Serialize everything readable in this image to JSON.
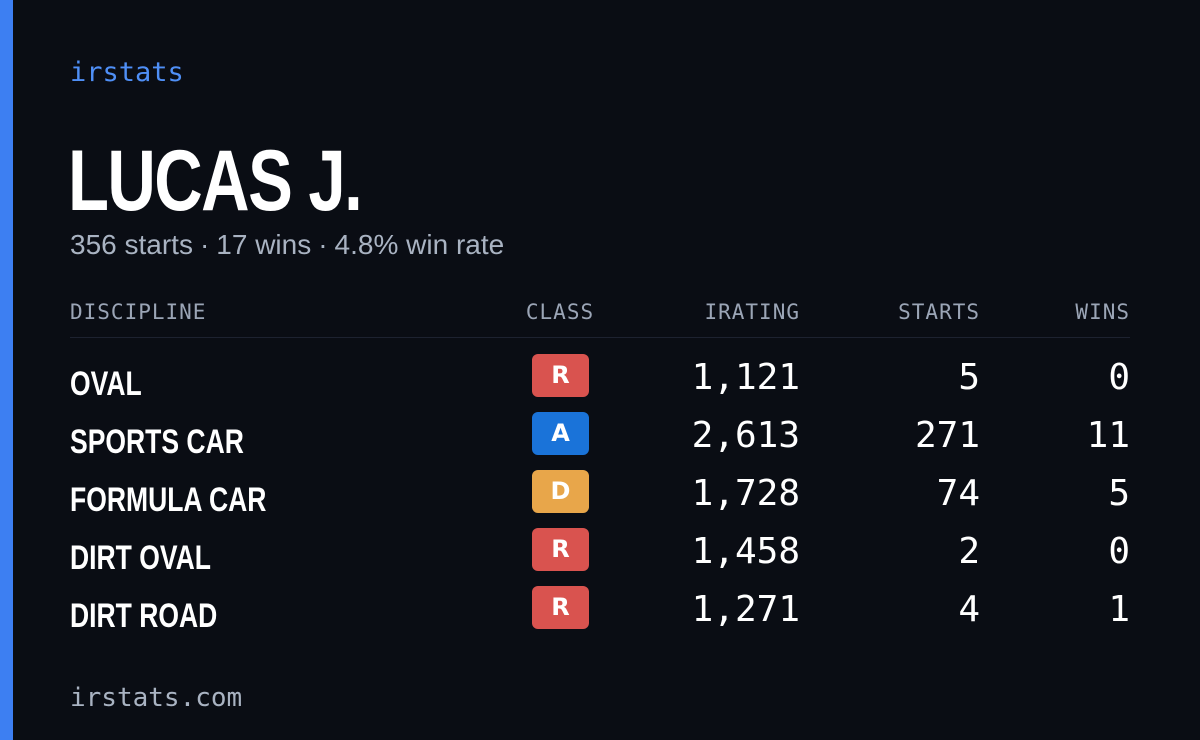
{
  "brand": "irstats",
  "player": {
    "name": "LUCAS J.",
    "starts_text": "356 starts",
    "wins_text": "17 wins",
    "win_rate_text": "4.8% win rate",
    "separator": "·"
  },
  "table": {
    "headers": {
      "discipline": "DISCIPLINE",
      "class": "CLASS",
      "irating": "IRATING",
      "starts": "STARTS",
      "wins": "WINS"
    },
    "rows": [
      {
        "discipline": "OVAL",
        "class": "R",
        "irating": "1,121",
        "starts": "5",
        "wins": "0"
      },
      {
        "discipline": "SPORTS CAR",
        "class": "A",
        "irating": "2,613",
        "starts": "271",
        "wins": "11"
      },
      {
        "discipline": "FORMULA CAR",
        "class": "D",
        "irating": "1,728",
        "starts": "74",
        "wins": "5"
      },
      {
        "discipline": "DIRT OVAL",
        "class": "R",
        "irating": "1,458",
        "starts": "2",
        "wins": "0"
      },
      {
        "discipline": "DIRT ROAD",
        "class": "R",
        "irating": "1,271",
        "starts": "4",
        "wins": "1"
      }
    ]
  },
  "class_colors": {
    "R": "#d9534f",
    "A": "#1a73d9",
    "D": "#e8a64a"
  },
  "accent_color": "#3d7ff2",
  "footer": "irstats.com"
}
